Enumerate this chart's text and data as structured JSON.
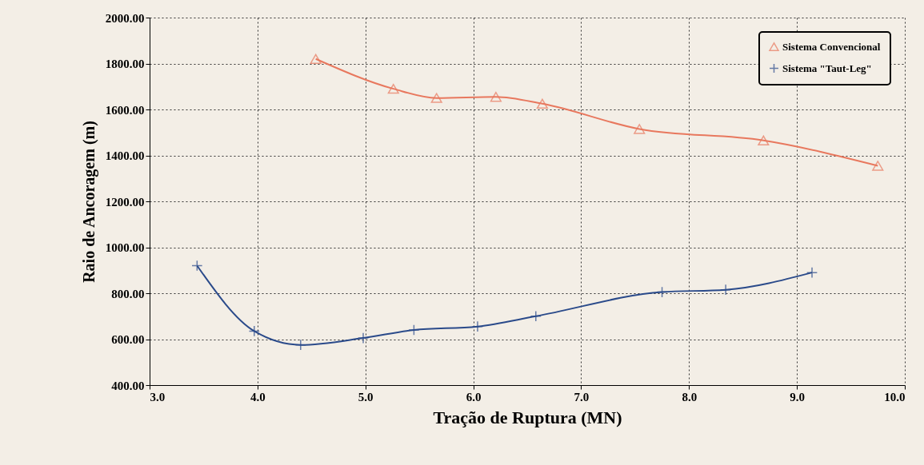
{
  "chart_data": {
    "type": "line",
    "xlabel": "Tração de Ruptura (MN)",
    "ylabel": "Raio de Ancoragem (m)",
    "xlim": [
      3.0,
      10.0
    ],
    "xticks": [
      {
        "value": 3,
        "label": "3.0"
      },
      {
        "value": 4,
        "label": "4.0"
      },
      {
        "value": 5,
        "label": "5.0"
      },
      {
        "value": 6,
        "label": "6.0"
      },
      {
        "value": 7,
        "label": "7.0"
      },
      {
        "value": 8,
        "label": "8.0"
      },
      {
        "value": 9,
        "label": "9.0"
      },
      {
        "value": 10,
        "label": "10.0"
      }
    ],
    "ylim": [
      400,
      2000
    ],
    "yticks": [
      {
        "value": 400,
        "label": "400.00"
      },
      {
        "value": 600,
        "label": "600.00"
      },
      {
        "value": 800,
        "label": "800.00"
      },
      {
        "value": 1000,
        "label": "1000.00"
      },
      {
        "value": 1200,
        "label": "1200.00"
      },
      {
        "value": 1400,
        "label": "1400.00"
      },
      {
        "value": 1600,
        "label": "1600.00"
      },
      {
        "value": 1800,
        "label": "1800.00"
      },
      {
        "value": 2000,
        "label": "2000.00"
      }
    ],
    "grid": true,
    "legend": "top right",
    "line_style": "solid",
    "series": [
      {
        "name": "Sistema Convencional",
        "color": "#e8785e",
        "marker": "triangle",
        "x": [
          4.54,
          5.26,
          5.66,
          6.21,
          6.64,
          7.54,
          8.69,
          9.75
        ],
        "values": [
          1820,
          1690,
          1650,
          1655,
          1625,
          1515,
          1465,
          1355
        ]
      },
      {
        "name": "Sistema \"Taut-Leg\"",
        "color": "#2a4a8a",
        "marker": "cross",
        "x": [
          3.44,
          3.97,
          4.4,
          4.98,
          5.45,
          6.04,
          6.58,
          7.75,
          8.34,
          9.14
        ],
        "values": [
          920,
          635,
          575,
          605,
          640,
          655,
          700,
          805,
          815,
          890
        ]
      }
    ]
  }
}
